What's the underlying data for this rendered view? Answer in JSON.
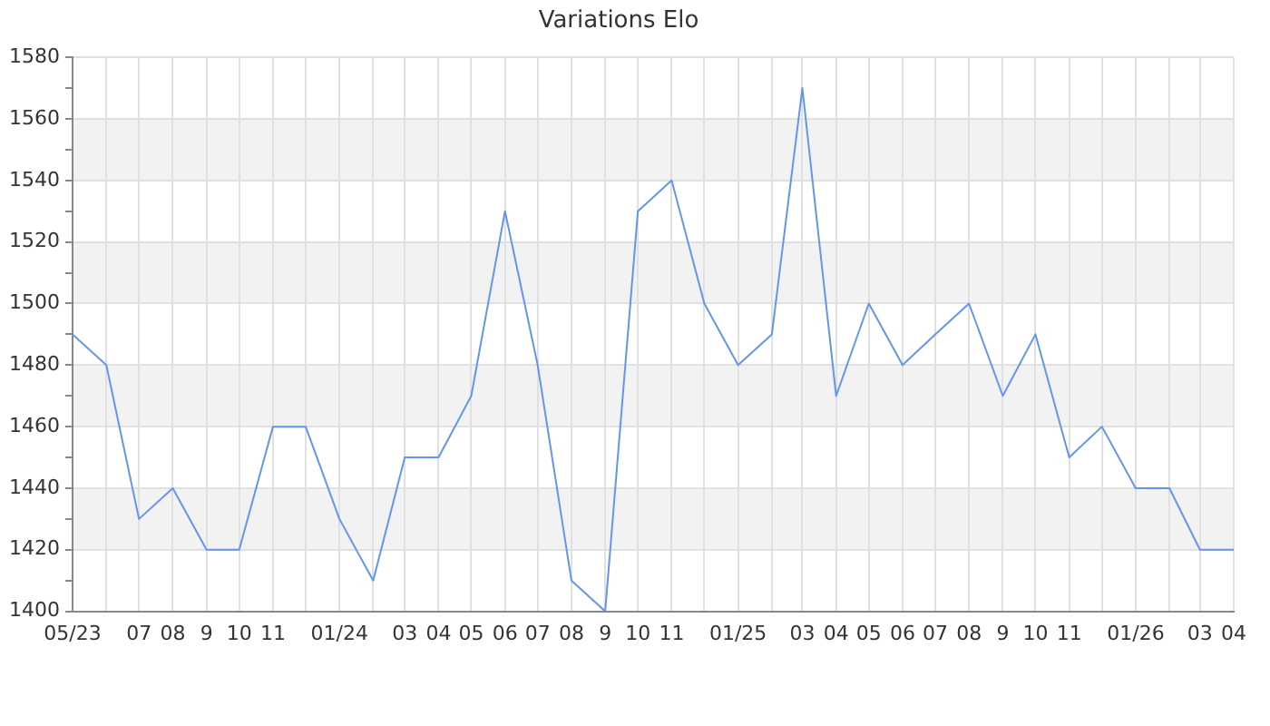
{
  "chart_data": {
    "type": "line",
    "title": "Variations Elo",
    "x": [
      "2023-05",
      "2023-06",
      "2023-07",
      "2023-08",
      "2023-09",
      "2023-10",
      "2023-11",
      "2023-12",
      "2024-01",
      "2024-02",
      "2024-03",
      "2024-04",
      "2024-05",
      "2024-06",
      "2024-07",
      "2024-08",
      "2024-09",
      "2024-10",
      "2024-11",
      "2024-12",
      "2025-01",
      "2025-02",
      "2025-03",
      "2025-04",
      "2025-05",
      "2025-06",
      "2025-07",
      "2025-08",
      "2025-09",
      "2025-10",
      "2025-11",
      "2025-12",
      "2026-01",
      "2026-02",
      "2026-03",
      "2026-04"
    ],
    "series": [
      {
        "color": "#6495ed",
        "values": [
          1490,
          1480,
          1430,
          1440,
          1420,
          1420,
          1460,
          1460,
          1430,
          1410,
          1450,
          1450,
          1470,
          1530,
          1480,
          1410,
          1400,
          1530,
          1540,
          1500,
          1480,
          1490,
          1570,
          1470,
          1500,
          1480,
          1490,
          1500,
          1470,
          1490,
          1450,
          1460,
          1440,
          1440,
          1420,
          1420
        ]
      }
    ],
    "xlim": [
      "2023-05",
      "2026-04"
    ],
    "xticks": [
      {
        "value": "2023-05",
        "label": "05/23"
      },
      {
        "value": "2023-06",
        "label": null
      },
      {
        "value": "2023-07",
        "label": "07"
      },
      {
        "value": "2023-08",
        "label": "08"
      },
      {
        "value": "2023-09",
        "label": "9"
      },
      {
        "value": "2023-10",
        "label": "10"
      },
      {
        "value": "2023-11",
        "label": "11"
      },
      {
        "value": "2023-12",
        "label": null
      },
      {
        "value": "2024-01",
        "label": "01/24"
      },
      {
        "value": "2024-02",
        "label": null
      },
      {
        "value": "2024-03",
        "label": "03"
      },
      {
        "value": "2024-04",
        "label": "04"
      },
      {
        "value": "2024-05",
        "label": "05"
      },
      {
        "value": "2024-06",
        "label": "06"
      },
      {
        "value": "2024-07",
        "label": "07"
      },
      {
        "value": "2024-08",
        "label": "08"
      },
      {
        "value": "2024-09",
        "label": "9"
      },
      {
        "value": "2024-10",
        "label": "10"
      },
      {
        "value": "2024-11",
        "label": "11"
      },
      {
        "value": "2024-12",
        "label": null
      },
      {
        "value": "2025-01",
        "label": "01/25"
      },
      {
        "value": "2025-02",
        "label": null
      },
      {
        "value": "2025-03",
        "label": "03"
      },
      {
        "value": "2025-04",
        "label": "04"
      },
      {
        "value": "2025-05",
        "label": "05"
      },
      {
        "value": "2025-06",
        "label": "06"
      },
      {
        "value": "2025-07",
        "label": "07"
      },
      {
        "value": "2025-08",
        "label": "08"
      },
      {
        "value": "2025-09",
        "label": "9"
      },
      {
        "value": "2025-10",
        "label": "10"
      },
      {
        "value": "2025-11",
        "label": "11"
      },
      {
        "value": "2025-12",
        "label": null
      },
      {
        "value": "2026-01",
        "label": "01/26"
      },
      {
        "value": "2026-02",
        "label": null
      },
      {
        "value": "2026-03",
        "label": "03"
      },
      {
        "value": "2026-04",
        "label": "04"
      }
    ],
    "ylim": [
      1400,
      1580
    ],
    "yticks": [
      1400,
      {
        "value": 1410,
        "label": null
      },
      1420,
      {
        "value": 1430,
        "label": null
      },
      1440,
      {
        "value": 1450,
        "label": null
      },
      1460,
      {
        "value": 1470,
        "label": null
      },
      1480,
      {
        "value": 1490,
        "label": null
      },
      1500,
      {
        "value": 1510,
        "label": null
      },
      1520,
      {
        "value": 1530,
        "label": null
      },
      1540,
      {
        "value": 1550,
        "label": null
      },
      1560,
      {
        "value": 1570,
        "label": null
      },
      1580
    ],
    "bands": [
      {
        "axis": "y",
        "from": 1420,
        "to": 1440,
        "color": "#f2f2f2"
      },
      {
        "axis": "y",
        "from": 1460,
        "to": 1480,
        "color": "#f2f2f2"
      },
      {
        "axis": "y",
        "from": 1500,
        "to": 1520,
        "color": "#f2f2f2"
      },
      {
        "axis": "y",
        "from": 1540,
        "to": 1560,
        "color": "#f2f2f2"
      }
    ],
    "grid": true,
    "legend": false,
    "marker": "none",
    "line_style": "solid"
  }
}
